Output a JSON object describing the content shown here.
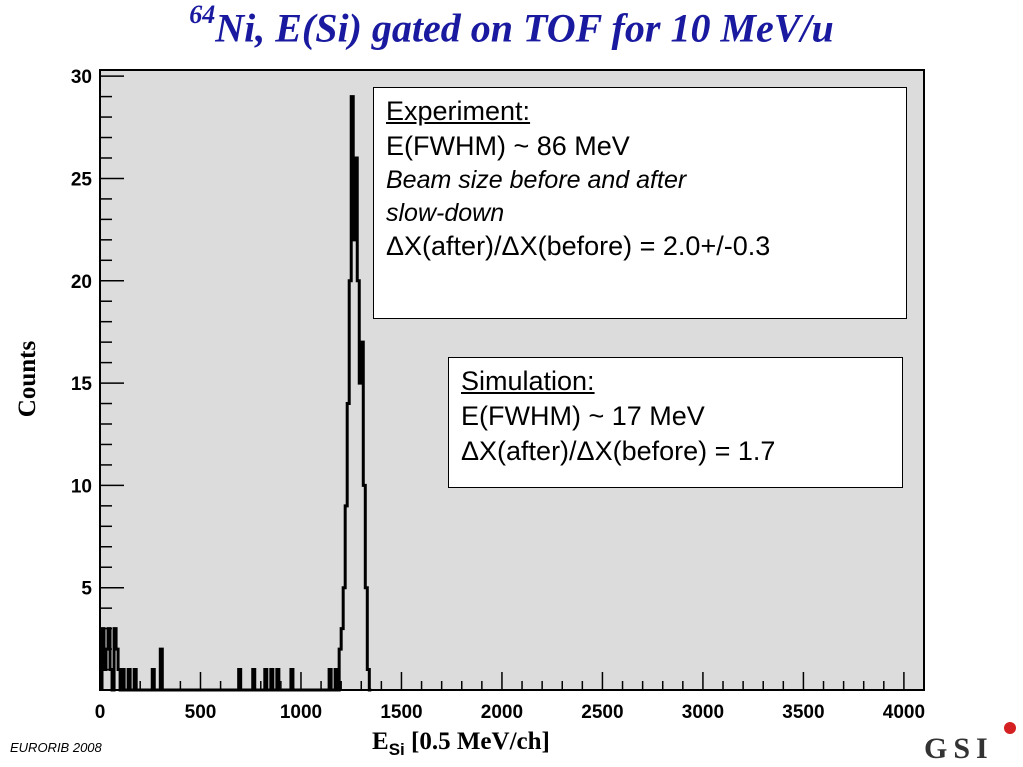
{
  "title": {
    "sup": "64",
    "main": "Ni, E(Si) gated on TOF for 10 MeV/u"
  },
  "footer": "EURORIB 2008",
  "logo": "GSI",
  "experiment_box": {
    "heading": "Experiment:",
    "line1": "E(FWHM) ~ 86 MeV",
    "line2": "Beam size before and after",
    "line3": "slow-down",
    "line4": "ΔX(after)/ΔX(before) = 2.0+/-0.3"
  },
  "simulation_box": {
    "heading": "Simulation:",
    "line1": "E(FWHM) ~ 17 MeV",
    "line2": "ΔX(after)/ΔX(before) = 1.7"
  },
  "chart_data": {
    "type": "histogram",
    "xlabel": {
      "main": "E",
      "sub": "Si",
      "rest": " [0.5 MeV/ch]"
    },
    "ylabel": "Counts",
    "xlim": [
      0,
      4100
    ],
    "ylim": [
      0,
      30.3
    ],
    "xticks": [
      0,
      500,
      1000,
      1500,
      2000,
      2500,
      3000,
      3500,
      4000
    ],
    "yticks": [
      5,
      10,
      15,
      20,
      25,
      30
    ],
    "plot_background": "#dcdcdc",
    "line_color": "#000000",
    "bin_width": 10,
    "bins": [
      [
        10,
        3
      ],
      [
        20,
        1
      ],
      [
        30,
        2
      ],
      [
        40,
        3
      ],
      [
        50,
        1
      ],
      [
        60,
        0
      ],
      [
        70,
        3
      ],
      [
        80,
        2
      ],
      [
        90,
        1
      ],
      [
        100,
        0
      ],
      [
        110,
        1
      ],
      [
        120,
        0
      ],
      [
        140,
        1
      ],
      [
        150,
        0
      ],
      [
        170,
        1
      ],
      [
        180,
        0
      ],
      [
        260,
        1
      ],
      [
        270,
        0
      ],
      [
        300,
        2
      ],
      [
        310,
        0
      ],
      [
        690,
        1
      ],
      [
        700,
        0
      ],
      [
        760,
        1
      ],
      [
        770,
        0
      ],
      [
        820,
        1
      ],
      [
        830,
        0
      ],
      [
        850,
        1
      ],
      [
        860,
        0
      ],
      [
        880,
        1
      ],
      [
        890,
        0
      ],
      [
        950,
        1
      ],
      [
        960,
        0
      ],
      [
        1140,
        1
      ],
      [
        1150,
        0
      ],
      [
        1170,
        1
      ],
      [
        1180,
        0
      ],
      [
        1190,
        2
      ],
      [
        1200,
        3
      ],
      [
        1210,
        5
      ],
      [
        1220,
        9
      ],
      [
        1230,
        14
      ],
      [
        1240,
        20
      ],
      [
        1250,
        29
      ],
      [
        1260,
        22
      ],
      [
        1270,
        26
      ],
      [
        1280,
        20
      ],
      [
        1290,
        15
      ],
      [
        1300,
        17
      ],
      [
        1310,
        10
      ],
      [
        1320,
        5
      ],
      [
        1330,
        1
      ],
      [
        1340,
        0
      ]
    ]
  }
}
